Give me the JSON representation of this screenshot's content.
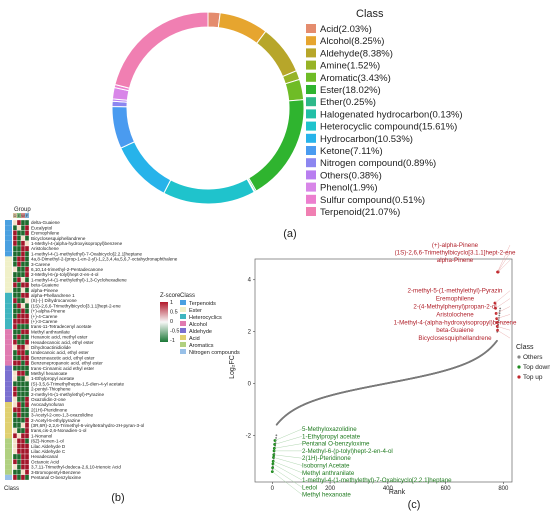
{
  "panel_labels": {
    "a": "(a)",
    "b": "(b)",
    "c": "(c)"
  },
  "chart_data": [
    {
      "type": "pie",
      "variant": "donut",
      "legend_title": "Class",
      "legend_position": "right",
      "slices": [
        {
          "label": "Acid(2.03%)",
          "value": 2.03,
          "color": "#e48c6e"
        },
        {
          "label": "Alcohol(8.25%)",
          "value": 8.25,
          "color": "#e6a52f"
        },
        {
          "label": "Aldehyde(8.38%)",
          "value": 8.38,
          "color": "#b7a62a"
        },
        {
          "label": "Amine(1.52%)",
          "value": 1.52,
          "color": "#97b326"
        },
        {
          "label": "Aromatic(3.43%)",
          "value": 3.43,
          "color": "#6fbc26"
        },
        {
          "label": "Ester(18.02%)",
          "value": 18.02,
          "color": "#2fb42f"
        },
        {
          "label": "Ether(0.25%)",
          "value": 0.25,
          "color": "#2eb88a"
        },
        {
          "label": "Halogenated hydrocarbon(0.13%)",
          "value": 0.13,
          "color": "#22bfa6"
        },
        {
          "label": "Heterocyclic compound(15.61%)",
          "value": 15.61,
          "color": "#1fc3cc"
        },
        {
          "label": "Hydrocarbon(10.53%)",
          "value": 10.53,
          "color": "#27b3ea"
        },
        {
          "label": "Ketone(7.11%)",
          "value": 7.11,
          "color": "#4a9bf0"
        },
        {
          "label": "Nitrogen compound(0.89%)",
          "value": 0.89,
          "color": "#8c86f0"
        },
        {
          "label": "Others(0.38%)",
          "value": 0.38,
          "color": "#b87ef0"
        },
        {
          "label": "Phenol(1.9%)",
          "value": 1.9,
          "color": "#d886e8"
        },
        {
          "label": "Sulfur compound(0.51%)",
          "value": 0.51,
          "color": "#ec7fcf"
        },
        {
          "label": "Terpenoid(21.07%)",
          "value": 21.07,
          "color": "#f07fb2"
        }
      ]
    },
    {
      "type": "heatmap",
      "top_label": "Group",
      "group_codes": [
        "D",
        "E",
        "W",
        "F"
      ],
      "group_colors": [
        "#d9c3a0",
        "#7fbf7f",
        "#d98888",
        "#7fb0d9"
      ],
      "bottom_label": "Class",
      "legend": {
        "zscore_title": "Z-score",
        "zscore_ticks": [
          "1",
          "0.5",
          "0",
          "-0.5",
          "-1"
        ],
        "zscore_colors": [
          "#b2182b",
          "#f7f7f7",
          "#1b7837"
        ],
        "class_title": "Class",
        "classes": [
          {
            "label": "Terpenoids",
            "color": "#4aa0e0"
          },
          {
            "label": "Ester",
            "color": "#f0f0c8"
          },
          {
            "label": "Heterocyclics",
            "color": "#3fb5bf"
          },
          {
            "label": "Alcohol",
            "color": "#e07ab0"
          },
          {
            "label": "Aldehyde",
            "color": "#7a6fd0"
          },
          {
            "label": "Acid",
            "color": "#e0d070"
          },
          {
            "label": "Aromatics",
            "color": "#b0d080"
          },
          {
            "label": "Nitrogen compounds",
            "color": "#98c0e8"
          }
        ]
      },
      "rows": [
        "delta-Guaiene",
        "Eucalyptol",
        "Eremophilene",
        "Bicyclosesquiphellandrene",
        "1-Methyl-4-(alpha-hydroxyisopropyl)benzene",
        "Aristolochene",
        "1-methyl-4-(1-methylethyl)-7-Oxabicyclo[2.2.1]heptane",
        "4a,8-Dimethyl-2-(prop-1-en-2-yl)-1,2,3,4,4a,5,6,7-octahydronaphthalene",
        "3-Carene",
        "6,10,14-trimethyl-2-Pentadecanone",
        "2-Methyl-6-(p-tolyl)hept-2-en-4-ol",
        "1-methyl-4-(1-methylethyl)-1,3-Cyclohexadiene",
        "beta-Guaiene",
        "alpha-Pinene",
        "alpha-Phellandrene 1",
        "(S)-(-) Dihydrocarvone",
        "(1S)-2,6,6-Trimethylbicyclo[3.1.1]hept-2-ene",
        "(+)-alpha-Pinene",
        "(+)-4-Carene",
        "(+)-3-Carene",
        "trans-11-Tetradecenyl acetate",
        "Methyl anthranilate",
        "Hexanoic acid, methyl ester",
        "Hexadecanoic acid, ethyl ester",
        "Dihydroactinidiolide",
        "Undecanoic acid, ethyl ester",
        "Benzeneacetic acid, ethyl ester",
        "Benzenepropanoic acid, ethyl ester",
        "trans-Cinnamic acid ethyl ester",
        "Methyl hexanoate",
        "1-Ethylpropyl acetate",
        "(S)-3,5,6-Trimethylhepta-1,5-dien-4-yl acetate",
        "2-pentyl-Thiophene",
        "2-methyl-5-(1-methylethyl)-Pyrazine",
        "Oxazolidin-2-one",
        "Avocadynofuran",
        "2(1H)-Pteridinone",
        "3-Acetyl-2-oxo-1,3-oxazolidine",
        "2-Acetyl-5-ethylpyrazine",
        "(3R,6R)-2,2,6-Trimethyl-6-vinyltetrahydro-2H-pyran-3-ol",
        "trans,cis-2,6-Nonadien-1-ol",
        "1-Nonanol",
        "(6Z)-Nonen-1-ol",
        "Lilac Aldehyde D",
        "Lilac Aldehyde C",
        "Hexadecanal",
        "Octanoic Acid",
        "3,7,11-Trimethyl-dodeca-2,6,10-trienoic Acid",
        "3-Bromopentyl-Benzene",
        "Pentanal O-benzyloxime"
      ]
    },
    {
      "type": "scatter",
      "xlabel": "Rank",
      "ylabel": "Log₂FC",
      "xlim": [
        -60,
        830
      ],
      "ylim": [
        -3.8,
        4.8
      ],
      "xticks": [
        0,
        200,
        400,
        600,
        800
      ],
      "yticks": [
        -2,
        0,
        2,
        4
      ],
      "n_points": 790,
      "legend": {
        "title": "Class",
        "entries": [
          "Others",
          "Top down",
          "Top up"
        ],
        "colors": [
          "#888888",
          "#1e8a1e",
          "#c0282d"
        ]
      },
      "top_up": [
        {
          "label": "(+)-alpha-Pinene",
          "rank": 780,
          "value": 4.3
        },
        {
          "label": "(1S)-2,6,6-Trimethylbicyclo[3.1.1]hept-2-ene",
          "rank": 781,
          "value": 4.3
        },
        {
          "label": "alpha-Pinene",
          "rank": 782,
          "value": 4.3
        },
        {
          "label": "2-methyl-5-(1-methylethyl)-Pyrazin",
          "rank": 771,
          "value": 3.1
        },
        {
          "label": "Eremophilene",
          "rank": 773,
          "value": 2.9
        },
        {
          "label": "2-(4-Methylphenyl)propan-2-ol",
          "rank": 775,
          "value": 2.7
        },
        {
          "label": "Aristolochene",
          "rank": 777,
          "value": 2.5
        },
        {
          "label": "1-Methyl-4-(alpha-hydroxyisopropyl)benzene",
          "rank": 778,
          "value": 2.35
        },
        {
          "label": "beta-Guaiene",
          "rank": 779,
          "value": 2.2
        },
        {
          "label": "Bicyclosesquiphellandrene",
          "rank": 780,
          "value": 2.05
        }
      ],
      "top_down": [
        {
          "label": "5-Methyloxazolidine",
          "rank": 9,
          "value": -2.2
        },
        {
          "label": "1-Ethylpropyl acetate",
          "rank": 8,
          "value": -2.35
        },
        {
          "label": "Pentanal O-benzyloxime",
          "rank": 7,
          "value": -2.5
        },
        {
          "label": "2-Methyl-6-(p-tolyl)hept-2-en-4-ol",
          "rank": 6,
          "value": -2.6
        },
        {
          "label": "2(1H)-Pteridinone",
          "rank": 5,
          "value": -2.75
        },
        {
          "label": "Isobornyl Acetate",
          "rank": 4,
          "value": -2.85
        },
        {
          "label": "Methyl anthranilate",
          "rank": 3,
          "value": -3.0
        },
        {
          "label": "1-methyl-4-(1-methylethyl)-7-Oxabicyclo[2.2.1]heptane",
          "rank": 2,
          "value": -3.1
        },
        {
          "label": "Ledol",
          "rank": 1,
          "value": -3.25
        },
        {
          "label": "Methyl hexanoate",
          "rank": 0,
          "value": -3.4
        }
      ]
    }
  ]
}
